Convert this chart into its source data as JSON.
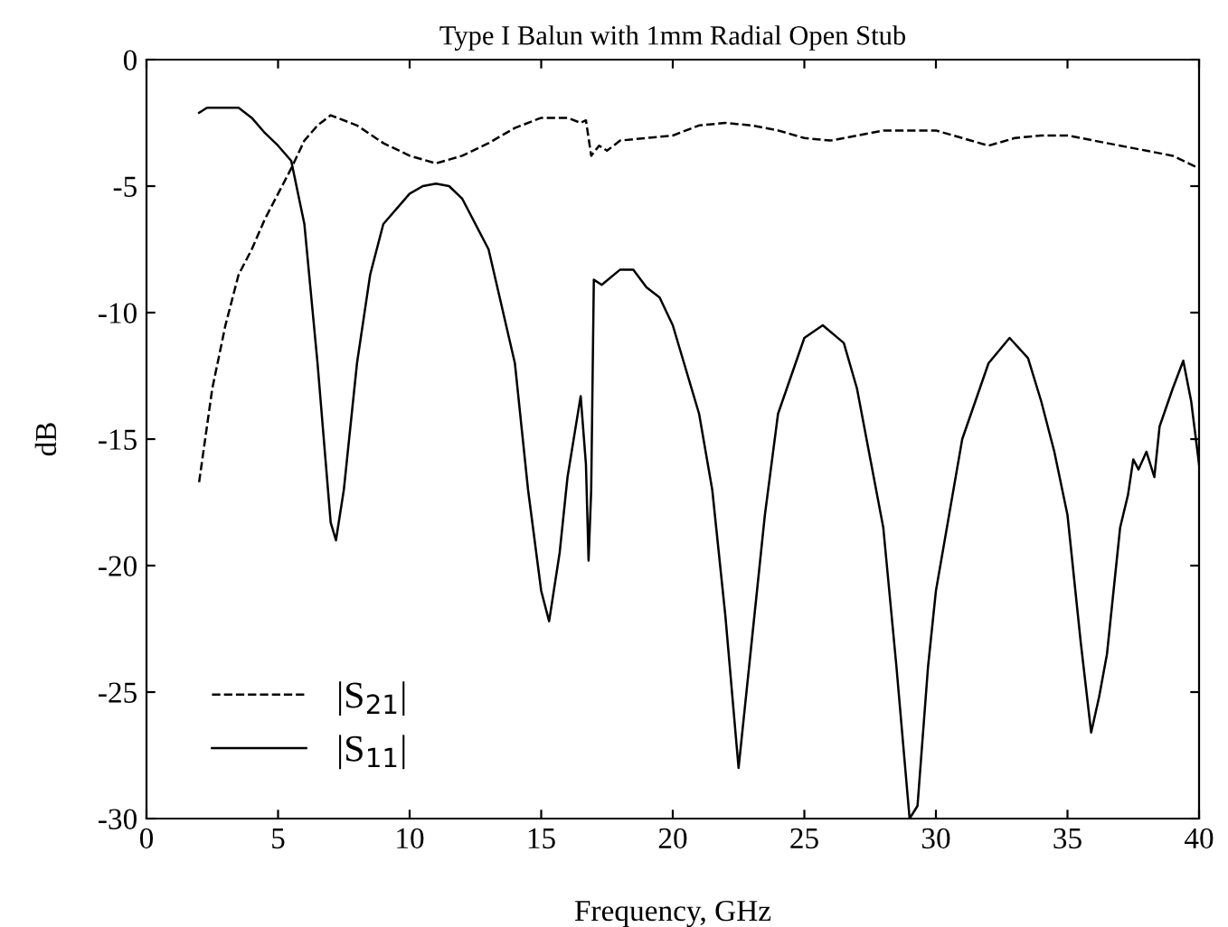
{
  "chart_data": {
    "type": "line",
    "title": "Type I Balun with 1mm Radial Open Stub",
    "xlabel": "Frequency, GHz",
    "ylabel": "dB",
    "xlim": [
      0,
      40
    ],
    "ylim": [
      -30,
      0
    ],
    "xticks": [
      0,
      5,
      10,
      15,
      20,
      25,
      30,
      35,
      40
    ],
    "yticks": [
      -30,
      -25,
      -20,
      -15,
      -10,
      -5,
      0
    ],
    "grid": false,
    "legend": "bottom left",
    "marker": "none",
    "series": [
      {
        "name": "|S$_{21}$|",
        "color": "#000000",
        "line_style": "dashed",
        "x": [
          2,
          2.5,
          3,
          3.5,
          4,
          4.5,
          5,
          5.5,
          6,
          6.5,
          7,
          8,
          9,
          10,
          11,
          12,
          13,
          14,
          15,
          16,
          16.5,
          16.7,
          16.9,
          17.2,
          17.5,
          18,
          19,
          20,
          21,
          22,
          23,
          24,
          25,
          26,
          27,
          28,
          29,
          30,
          31,
          32,
          33,
          34,
          35,
          36,
          37,
          38,
          39,
          40
        ],
        "values": [
          -16.7,
          -13,
          -10.5,
          -8.5,
          -7.5,
          -6.3,
          -5.3,
          -4.3,
          -3.2,
          -2.6,
          -2.2,
          -2.6,
          -3.3,
          -3.8,
          -4.1,
          -3.8,
          -3.3,
          -2.7,
          -2.3,
          -2.3,
          -2.5,
          -2.4,
          -3.8,
          -3.4,
          -3.6,
          -3.2,
          -3.1,
          -3.0,
          -2.6,
          -2.5,
          -2.6,
          -2.8,
          -3.1,
          -3.2,
          -3.0,
          -2.8,
          -2.8,
          -2.8,
          -3.1,
          -3.4,
          -3.1,
          -3.0,
          -3.0,
          -3.2,
          -3.4,
          -3.6,
          -3.8,
          -4.3
        ]
      },
      {
        "name": "|S$_{11}$|",
        "color": "#000000",
        "line_style": "solid",
        "x": [
          2,
          2.3,
          3,
          3.5,
          4,
          4.5,
          5,
          5.5,
          6,
          6.5,
          7,
          7.2,
          7.5,
          8,
          8.5,
          9,
          10,
          10.5,
          11,
          11.5,
          12,
          13,
          14,
          14.5,
          15,
          15.3,
          15.7,
          16,
          16.5,
          16.7,
          16.8,
          16.9,
          17,
          17.3,
          18,
          18.5,
          19,
          19.5,
          20,
          21,
          21.5,
          22,
          22.5,
          23,
          23.5,
          24,
          25,
          25.7,
          26.5,
          27,
          28,
          28.5,
          29,
          29.3,
          29.7,
          30,
          30.5,
          31,
          32,
          32.8,
          33.5,
          34,
          34.5,
          35,
          35.5,
          35.9,
          36.2,
          36.5,
          37,
          37.3,
          37.5,
          37.7,
          38,
          38.3,
          38.5,
          39,
          39.4,
          39.7,
          40
        ],
        "values": [
          -2.1,
          -1.9,
          -1.9,
          -1.9,
          -2.3,
          -2.9,
          -3.4,
          -4.0,
          -6.5,
          -12,
          -18.3,
          -19,
          -17,
          -12,
          -8.5,
          -6.5,
          -5.3,
          -5,
          -4.9,
          -5,
          -5.5,
          -7.5,
          -12,
          -17,
          -21,
          -22.2,
          -19.5,
          -16.5,
          -13.3,
          -16,
          -19.8,
          -17,
          -8.7,
          -8.9,
          -8.3,
          -8.3,
          -9.0,
          -9.4,
          -10.5,
          -14,
          -17,
          -22,
          -28,
          -23,
          -18,
          -14,
          -11,
          -10.5,
          -11.2,
          -13,
          -18.5,
          -24,
          -30,
          -29.5,
          -24,
          -21,
          -18,
          -15,
          -12,
          -11,
          -11.8,
          -13.5,
          -15.5,
          -18,
          -23,
          -26.6,
          -25.2,
          -23.5,
          -18.5,
          -17.2,
          -15.8,
          -16.2,
          -15.5,
          -16.5,
          -14.5,
          -13,
          -11.9,
          -13.5,
          -16
        ]
      }
    ]
  }
}
